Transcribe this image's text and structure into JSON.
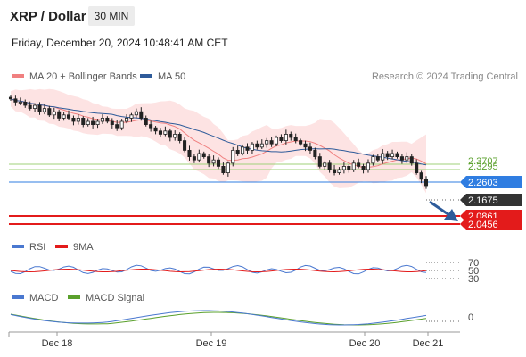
{
  "header": {
    "title": "XRP / Dollar",
    "timeframe": "30 MIN"
  },
  "datetime": "Friday, December 20, 2024 10:48:41 AM CET",
  "legend": {
    "ma20": {
      "label": "MA 20 + Bollinger Bands",
      "color": "#f08080"
    },
    "ma50": {
      "label": "MA 50",
      "color": "#2e5b9a"
    }
  },
  "copyright": "Research © 2024 Trading Central",
  "rsi_legend": {
    "rsi": {
      "label": "RSI",
      "color": "#4a78d0"
    },
    "ma9": {
      "label": "9MA",
      "color": "#e31b1b"
    }
  },
  "macd_legend": {
    "macd": {
      "label": "MACD",
      "color": "#4a78d0"
    },
    "signal": {
      "label": "MACD Signal",
      "color": "#5aa02c"
    }
  },
  "chart_data": {
    "type": "candlestick",
    "x_ticks": [
      "Dec 18",
      "Dec 19",
      "Dec 20",
      "Dec 21"
    ],
    "ylim": [
      2.02,
      2.47
    ],
    "close": [
      2.44,
      2.43,
      2.43,
      2.42,
      2.41,
      2.42,
      2.4,
      2.41,
      2.39,
      2.4,
      2.38,
      2.39,
      2.38,
      2.37,
      2.38,
      2.36,
      2.37,
      2.36,
      2.37,
      2.38,
      2.37,
      2.36,
      2.35,
      2.37,
      2.38,
      2.39,
      2.4,
      2.38,
      2.36,
      2.35,
      2.34,
      2.33,
      2.34,
      2.32,
      2.33,
      2.31,
      2.28,
      2.26,
      2.25,
      2.27,
      2.26,
      2.24,
      2.25,
      2.23,
      2.21,
      2.24,
      2.28,
      2.27,
      2.29,
      2.28,
      2.3,
      2.29,
      2.3,
      2.31,
      2.3,
      2.32,
      2.31,
      2.33,
      2.32,
      2.31,
      2.3,
      2.29,
      2.28,
      2.26,
      2.23,
      2.24,
      2.22,
      2.21,
      2.22,
      2.23,
      2.22,
      2.24,
      2.23,
      2.22,
      2.24,
      2.26,
      2.25,
      2.27,
      2.26,
      2.27,
      2.26,
      2.25,
      2.26,
      2.24,
      2.21,
      2.19,
      2.17
    ],
    "levels": [
      {
        "value": "2.3707",
        "kind": "resistance",
        "color": "#5aa02c"
      },
      {
        "value": "2.3295",
        "kind": "resistance",
        "color": "#5aa02c"
      },
      {
        "value": "2.2603",
        "kind": "pivot",
        "color": "#2f7de1"
      },
      {
        "value": "2.1675",
        "kind": "last",
        "color": "#333333"
      },
      {
        "value": "2.0861",
        "kind": "support",
        "color": "#e31b1b"
      },
      {
        "value": "2.0456",
        "kind": "support",
        "color": "#e31b1b"
      }
    ],
    "rsi_levels": [
      "70",
      "50",
      "30"
    ],
    "macd_levels": [
      "0"
    ],
    "forecast_arrow": "down"
  }
}
